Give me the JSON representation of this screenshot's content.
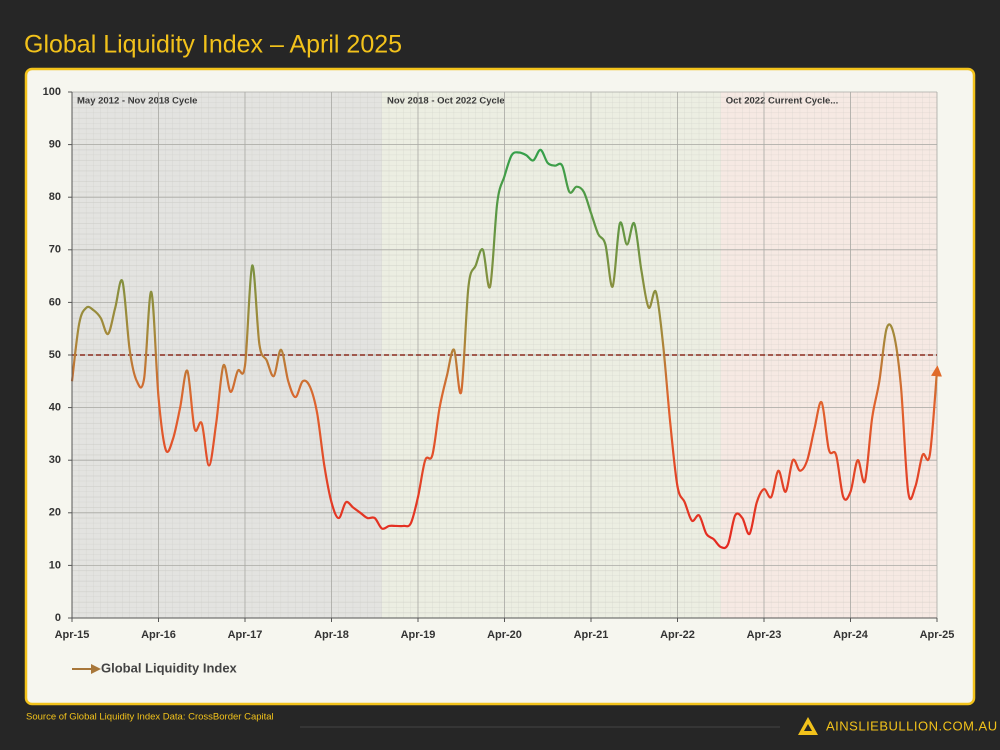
{
  "header": {
    "title": "Global Liquidity Index – April 2025"
  },
  "footer": {
    "source": "Source of Global Liquidity Index Data: CrossBorder Capital",
    "brand": "AINSLIEBULLION.COM.AU"
  },
  "chart_data": {
    "type": "line",
    "x": [
      "2015-04",
      "2015-05",
      "2015-06",
      "2015-07",
      "2015-08",
      "2015-09",
      "2015-10",
      "2015-11",
      "2015-12",
      "2016-01",
      "2016-02",
      "2016-03",
      "2016-04",
      "2016-05",
      "2016-06",
      "2016-07",
      "2016-08",
      "2016-09",
      "2016-10",
      "2016-11",
      "2016-12",
      "2017-01",
      "2017-02",
      "2017-03",
      "2017-04",
      "2017-05",
      "2017-06",
      "2017-07",
      "2017-08",
      "2017-09",
      "2017-10",
      "2017-11",
      "2017-12",
      "2018-01",
      "2018-02",
      "2018-03",
      "2018-04",
      "2018-05",
      "2018-06",
      "2018-07",
      "2018-08",
      "2018-09",
      "2018-10",
      "2018-11",
      "2018-12",
      "2019-01",
      "2019-02",
      "2019-03",
      "2019-04",
      "2019-05",
      "2019-06",
      "2019-07",
      "2019-08",
      "2019-09",
      "2019-10",
      "2019-11",
      "2019-12",
      "2020-01",
      "2020-02",
      "2020-03",
      "2020-04",
      "2020-05",
      "2020-06",
      "2020-07",
      "2020-08",
      "2020-09",
      "2020-10",
      "2020-11",
      "2020-12",
      "2021-01",
      "2021-02",
      "2021-03",
      "2021-04",
      "2021-05",
      "2021-06",
      "2021-07",
      "2021-08",
      "2021-09",
      "2021-10",
      "2021-11",
      "2021-12",
      "2022-01",
      "2022-02",
      "2022-03",
      "2022-04",
      "2022-05",
      "2022-06",
      "2022-07",
      "2022-08",
      "2022-09",
      "2022-10",
      "2022-11",
      "2022-12",
      "2023-01",
      "2023-02",
      "2023-03",
      "2023-04",
      "2023-05",
      "2023-06",
      "2023-07",
      "2023-08",
      "2023-09",
      "2023-10",
      "2023-11",
      "2023-12",
      "2024-01",
      "2024-02",
      "2024-03",
      "2024-04",
      "2024-05",
      "2024-06",
      "2024-07",
      "2024-08",
      "2024-09",
      "2024-10",
      "2024-11",
      "2024-12",
      "2025-01",
      "2025-02",
      "2025-03",
      "2025-04"
    ],
    "series": [
      {
        "name": "Global Liquidity Index",
        "color": "#a8773a",
        "values": [
          45,
          56,
          59,
          58.5,
          57,
          54,
          59,
          64,
          51,
          45,
          45.5,
          62,
          42,
          32,
          34,
          40,
          47,
          36,
          37,
          29,
          37,
          48,
          43,
          47,
          48,
          67,
          52,
          49,
          46,
          51,
          45,
          42,
          45,
          44,
          39,
          29,
          22,
          19,
          22,
          21,
          20,
          19,
          19,
          17,
          17.5,
          17.5,
          17.5,
          18,
          23,
          30,
          31,
          40,
          46,
          51,
          43,
          63,
          67,
          70,
          63,
          79,
          84,
          88,
          88.5,
          88,
          87,
          89,
          86.5,
          86,
          86,
          81,
          82,
          81,
          77,
          73,
          71,
          63,
          75,
          71,
          75,
          66,
          59,
          62,
          52,
          37,
          25,
          22,
          18.5,
          19.5,
          16,
          15,
          13.5,
          14,
          19.5,
          19,
          16,
          22,
          24.5,
          23,
          28,
          24,
          30,
          28,
          30,
          36,
          41,
          32,
          31,
          23,
          24,
          30,
          26,
          38,
          45,
          55,
          54,
          44,
          24,
          25,
          31,
          31,
          47
        ]
      }
    ],
    "xlim": [
      "2015-04",
      "2025-04"
    ],
    "xticks": [
      {
        "value": "2015-04",
        "label": "Apr-15"
      },
      {
        "value": "2016-04",
        "label": "Apr-16"
      },
      {
        "value": "2017-04",
        "label": "Apr-17"
      },
      {
        "value": "2018-04",
        "label": "Apr-18"
      },
      {
        "value": "2019-04",
        "label": "Apr-19"
      },
      {
        "value": "2020-04",
        "label": "Apr-20"
      },
      {
        "value": "2021-04",
        "label": "Apr-21"
      },
      {
        "value": "2022-04",
        "label": "Apr-22"
      },
      {
        "value": "2023-04",
        "label": "Apr-23"
      },
      {
        "value": "2024-04",
        "label": "Apr-24"
      },
      {
        "value": "2025-04",
        "label": "Apr-25"
      }
    ],
    "ylim": [
      0,
      100
    ],
    "yticks": [
      0,
      10,
      20,
      30,
      40,
      50,
      60,
      70,
      80,
      90,
      100
    ],
    "reference_line": 50,
    "regions": [
      {
        "label": "May 2012 - Nov 2018 Cycle",
        "start": "2015-04",
        "end": "2018-11",
        "color": "#e3e3e0"
      },
      {
        "label": "Nov 2018 - Oct 2022 Cycle",
        "start": "2018-11",
        "end": "2022-10",
        "color": "#eceee2"
      },
      {
        "label": "Oct 2022 Current Cycle...",
        "start": "2022-10",
        "end": "2025-04",
        "color": "#f6e9e3"
      }
    ],
    "grid": true,
    "legend": "bottom-left"
  }
}
